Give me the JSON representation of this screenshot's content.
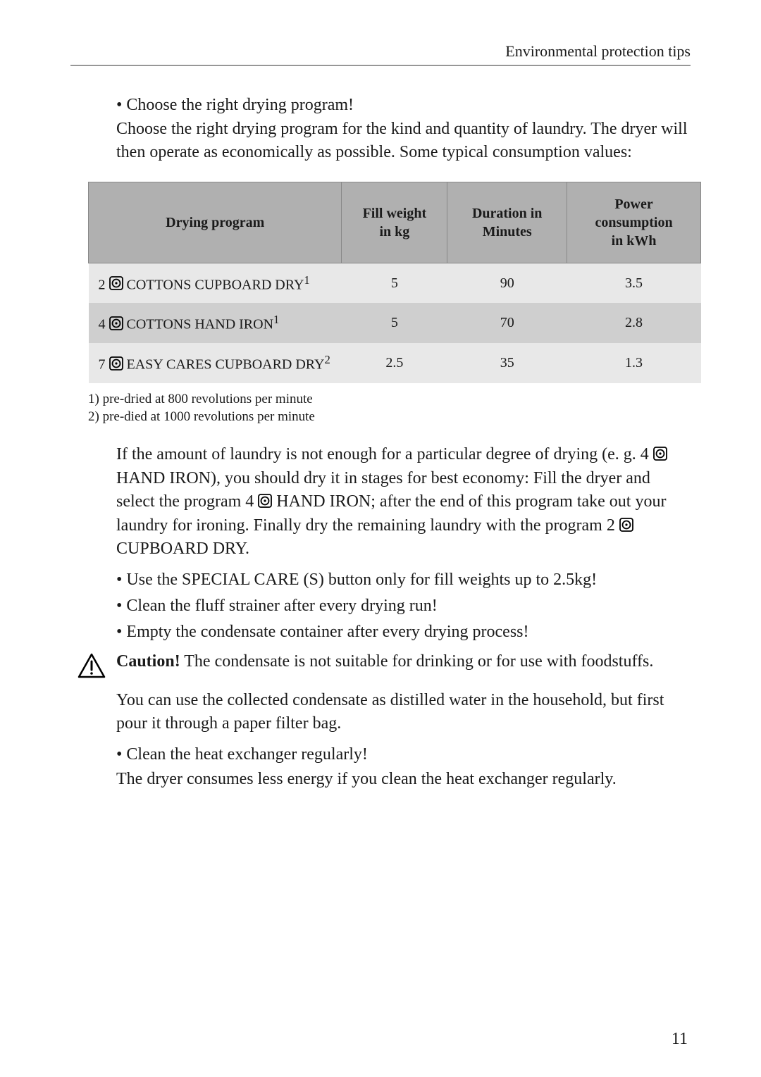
{
  "header": {
    "section_title": "Environmental protection tips"
  },
  "intro": {
    "bullet_title": "• Choose the right drying program!",
    "bullet_body": "Choose the right drying program for the kind and quantity of laundry. The dryer will then operate as economically as possible. Some typical consumption values:"
  },
  "table": {
    "columns": [
      "Drying program",
      "Fill weight in kg",
      "Duration in Minutes",
      "Power consumption in kWh"
    ],
    "col_widths": [
      "360px",
      "150px",
      "170px",
      "190px"
    ],
    "header_bg": "#b0b0b0",
    "row_bg": "#e8e8e8",
    "row_alt_bg": "#cfcfcf",
    "rows": [
      {
        "program_prefix": "2",
        "program_name": " COTTONS CUPBOARD DRY",
        "sup": "1",
        "weight": "5",
        "duration": "90",
        "power": "3.5",
        "alt": false
      },
      {
        "program_prefix": "4",
        "program_name": " COTTONS HAND IRON",
        "sup": "1",
        "weight": "5",
        "duration": "70",
        "power": "2.8",
        "alt": true
      },
      {
        "program_prefix": "7",
        "program_name": " EASY CARES CUPBOARD DRY",
        "sup": "2",
        "weight": "2.5",
        "duration": "35",
        "power": "1.3",
        "alt": false
      }
    ]
  },
  "footnotes": {
    "note1": "1) pre-dried at 800 revolutions per minute",
    "note2": "2) pre-died at 1000 revolutions per minute"
  },
  "body": {
    "para1a": "If the amount of laundry is not enough for a particular degree of drying (e. g. 4 ",
    "para1b": " HAND IRON), you should dry it in stages for best economy: Fill the dryer and select the program 4 ",
    "para1c": " HAND IRON; after the end of this program take out your laundry for ironing. Finally dry the remaining laundry with the program 2 ",
    "para1d": " CUPBOARD DRY.",
    "bullet1": "• Use the SPECIAL CARE (S) button only for fill weights up to 2.5kg!",
    "bullet2": "• Clean the fluff strainer after every drying run!",
    "bullet3": "• Empty the condensate container after every drying process!",
    "caution_strong": "Caution!",
    "caution_rest": " The condensate is not suitable for drinking or for use with foodstuffs.",
    "para2": "You can use the collected condensate as distilled water in the household, but first pour it through a paper filter bag.",
    "bullet4": "• Clean the heat exchanger regularly!",
    "para3": "The dryer consumes less energy if you clean the heat exchanger regularly."
  },
  "page_number": "11"
}
